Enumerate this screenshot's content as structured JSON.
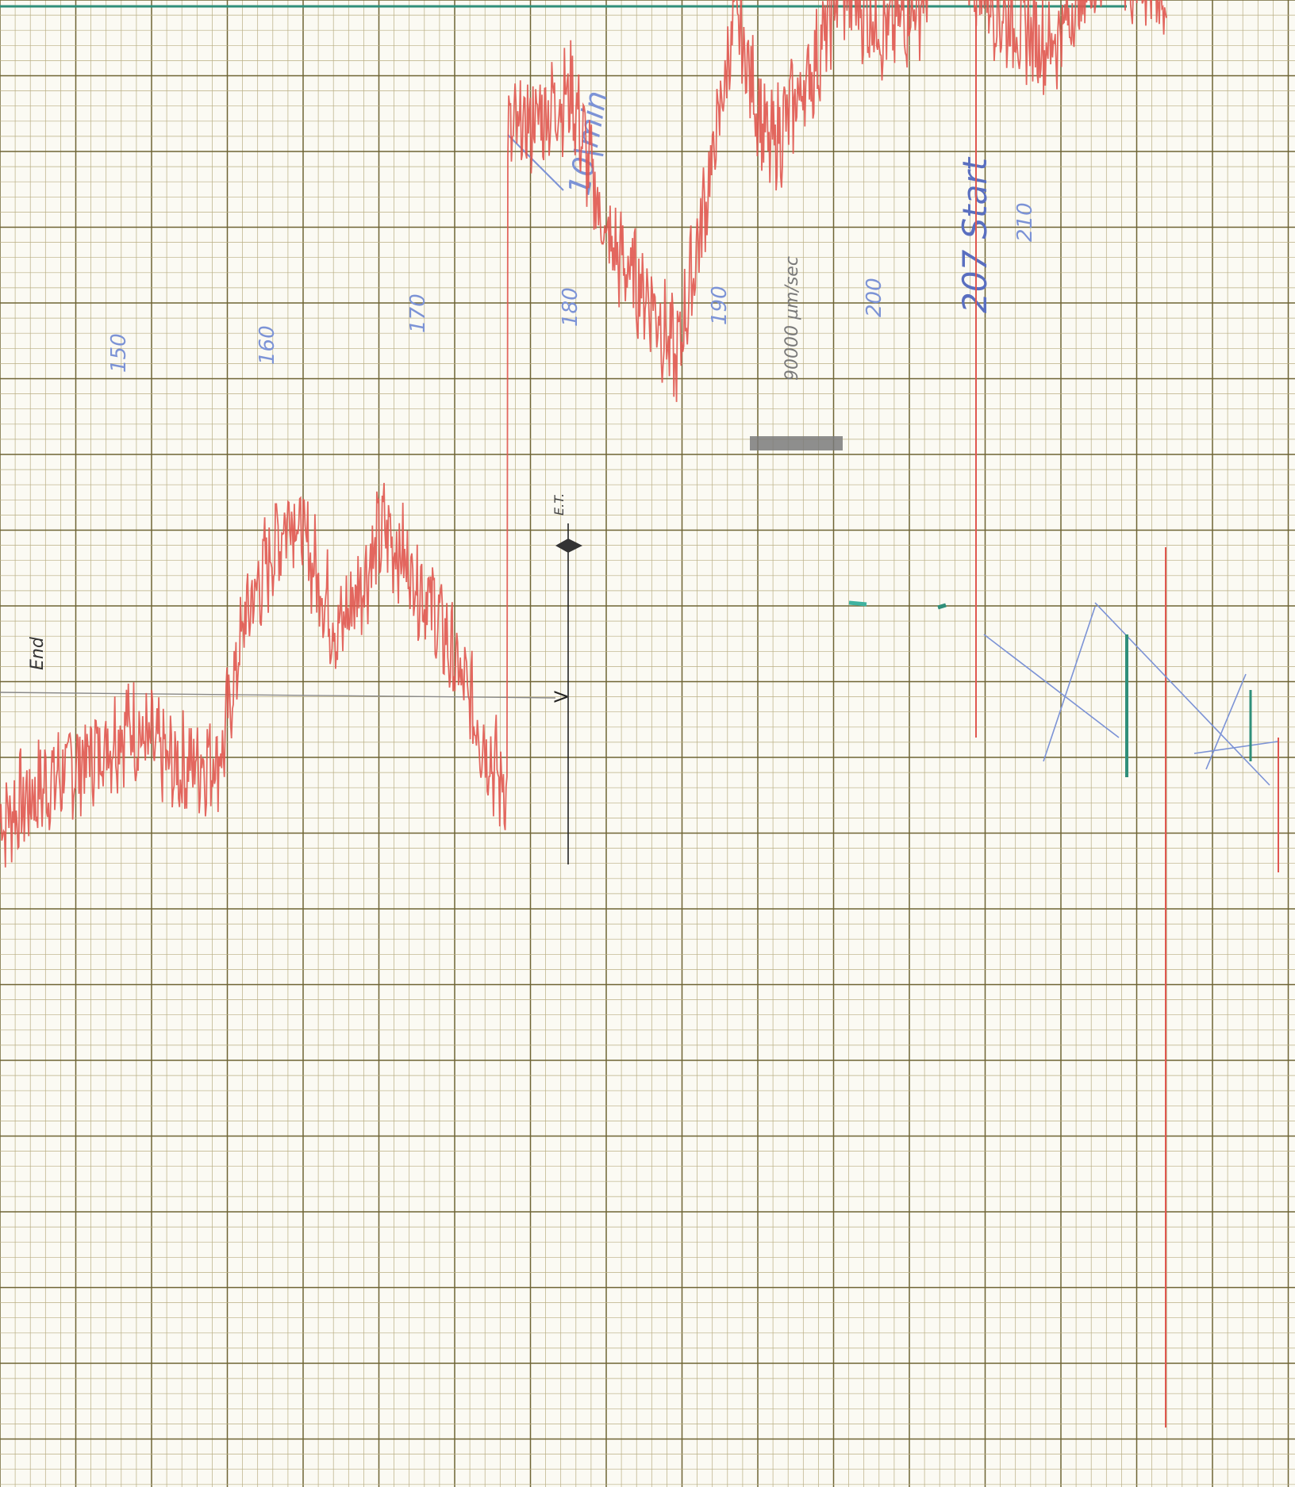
{
  "document": {
    "kind": "strip-chart recording on graph paper",
    "colors": {
      "paper": "#fbfaf3",
      "grid_fine": "#b9ae83",
      "grid_major": "#6e6434",
      "trace": "#e0574f",
      "blue_pen": "#7c93d6",
      "dark_blue_pen": "#5a6fc0",
      "pencil": "#7a7a7a",
      "teal_marker": "#2f8f7a"
    }
  },
  "annotations": {
    "scale": "10|min",
    "speed": "90000 µm/sec",
    "ticks": [
      "150",
      "160",
      "170",
      "180",
      "190",
      "200",
      "210"
    ],
    "start": "207 Start",
    "et": "E.T.",
    "end": "End",
    "v": "V"
  },
  "chart_data": {
    "type": "line",
    "title": "",
    "xlabel": "",
    "ylabel": "",
    "x_tick_labels": [
      "150",
      "160",
      "170",
      "180",
      "190",
      "200",
      "210"
    ],
    "grid": true,
    "series": [
      {
        "color": "#e0574f",
        "x": [
          0,
          0.04,
          0.08,
          0.11,
          0.15,
          0.19,
          0.21,
          0.25,
          0.29,
          0.33,
          0.37,
          0.4,
          0.43,
          0.44,
          0.49,
          0.52,
          0.56,
          0.58,
          0.61,
          0.63,
          0.66,
          0.7,
          0.72,
          0.76,
          0.79,
          0.81,
          0.86,
          0.9,
          0.95,
          1.0
        ],
        "values": [
          1.33,
          1.38,
          1.42,
          1.46,
          1.4,
          1.42,
          1.6,
          1.75,
          1.58,
          1.72,
          1.62,
          1.5,
          1.38,
          2.24,
          2.3,
          2.1,
          2.02,
          1.94,
          2.2,
          2.4,
          2.22,
          2.34,
          2.44,
          2.38,
          2.42,
          2.52,
          2.4,
          2.36,
          2.48,
          2.42
        ]
      }
    ]
  }
}
